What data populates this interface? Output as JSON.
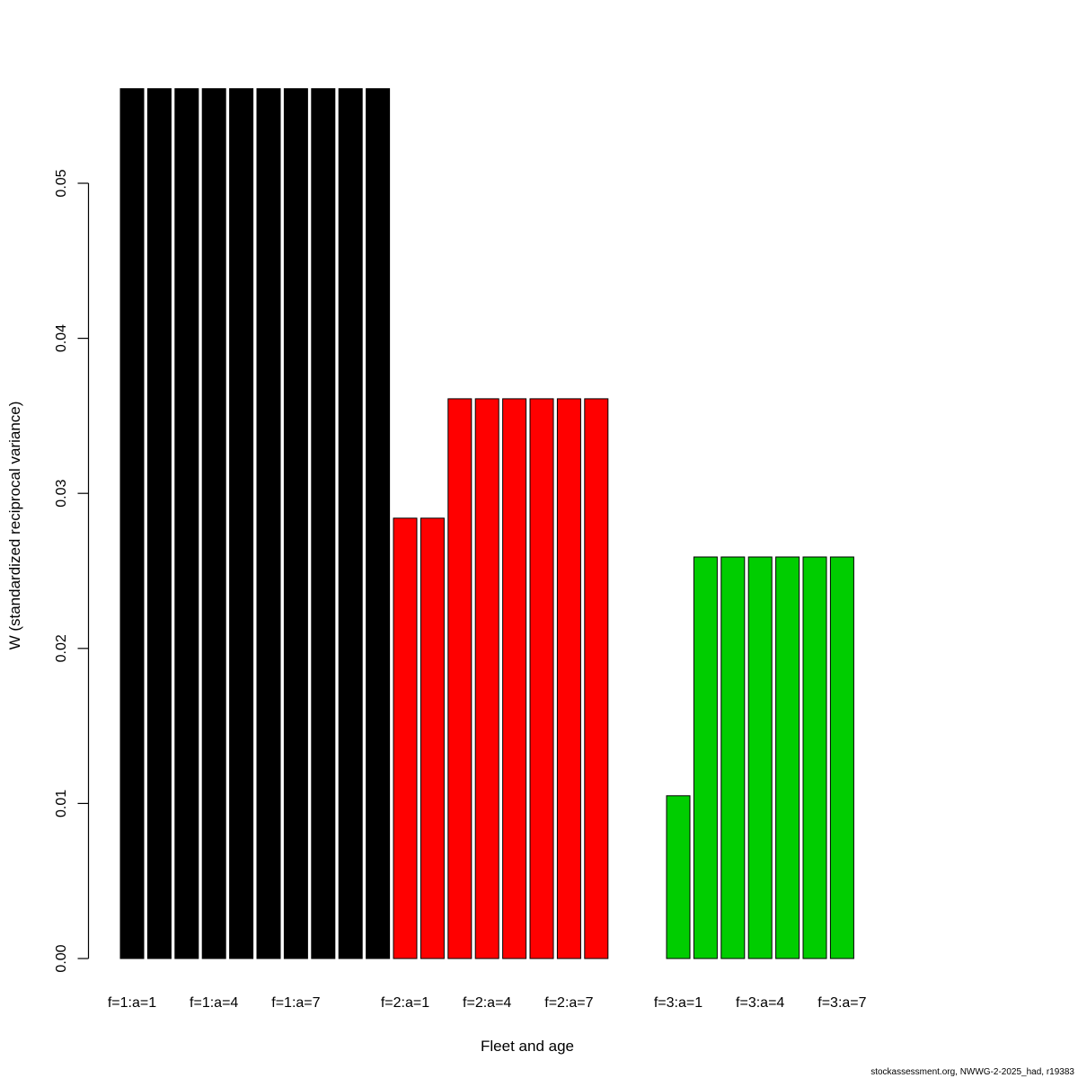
{
  "footer": {
    "text": "stockassessment.org, NWWG-2-2025_had, r19383"
  },
  "chart_data": {
    "type": "bar",
    "title": "",
    "xlabel": "Fleet and age",
    "ylabel": "W (standardized reciprocal variance)",
    "ylim": [
      0,
      0.0561
    ],
    "yticks": [
      0,
      0.01,
      0.02,
      0.03,
      0.04,
      0.05
    ],
    "ytick_labels": [
      "0.00",
      "0.01",
      "0.02",
      "0.03",
      "0.04",
      "0.05"
    ],
    "grid": false,
    "legend": "none",
    "bar_border_color": "#000000",
    "total_slots": 27,
    "series": [
      {
        "name": "f=1",
        "color": "#000000",
        "start_slot": 0,
        "ages": [
          1,
          2,
          3,
          4,
          5,
          6,
          7,
          8,
          9,
          10
        ],
        "values": [
          0.0561,
          0.0561,
          0.0561,
          0.0561,
          0.0561,
          0.0561,
          0.0561,
          0.0561,
          0.0561,
          0.0561
        ]
      },
      {
        "name": "f=2",
        "color": "#FF0000",
        "start_slot": 10,
        "ages": [
          1,
          2,
          3,
          4,
          5,
          6,
          7,
          8
        ],
        "values": [
          0.0284,
          0.0284,
          0.0361,
          0.0361,
          0.0361,
          0.0361,
          0.0361,
          0.0361
        ]
      },
      {
        "name": "f=3",
        "color": "#00CD00",
        "start_slot": 20,
        "ages": [
          1,
          2,
          3,
          4,
          5,
          6,
          7
        ],
        "values": [
          0.0105,
          0.0259,
          0.0259,
          0.0259,
          0.0259,
          0.0259,
          0.0259
        ]
      }
    ],
    "x_tick_labels": [
      {
        "slot": 0,
        "label": "f=1:a=1"
      },
      {
        "slot": 3,
        "label": "f=1:a=4"
      },
      {
        "slot": 6,
        "label": "f=1:a=7"
      },
      {
        "slot": 10,
        "label": "f=2:a=1"
      },
      {
        "slot": 13,
        "label": "f=2:a=4"
      },
      {
        "slot": 16,
        "label": "f=2:a=7"
      },
      {
        "slot": 20,
        "label": "f=3:a=1"
      },
      {
        "slot": 23,
        "label": "f=3:a=4"
      },
      {
        "slot": 26,
        "label": "f=3:a=7"
      }
    ]
  }
}
